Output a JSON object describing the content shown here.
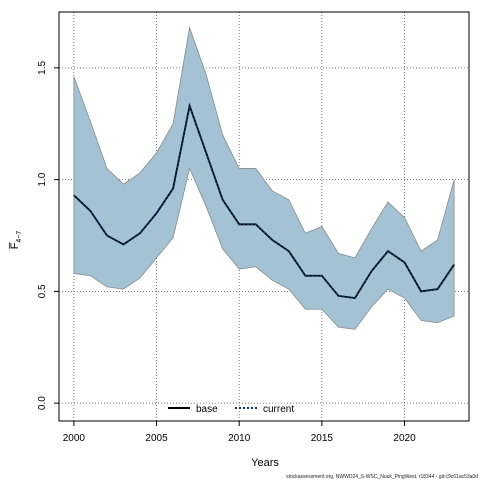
{
  "chart_data": {
    "type": "area",
    "xlabel": "Years",
    "ylabel": "F̅",
    "ylabel_subscript": "4−7",
    "xlim": [
      1999.1,
      2023.9
    ],
    "ylim": [
      -0.08,
      1.75
    ],
    "xticks": [
      2000,
      2005,
      2010,
      2015,
      2020
    ],
    "yticks": [
      0.0,
      0.5,
      1.0,
      1.5
    ],
    "xtick_labels": [
      "2000",
      "2005",
      "2010",
      "2015",
      "2020"
    ],
    "ytick_labels": [
      "0.0",
      "0.5",
      "1.0",
      "1.5"
    ],
    "grid": true,
    "legend_placement": "bottom-center",
    "legend": [
      {
        "label": "base",
        "style": "solid"
      },
      {
        "label": "current",
        "style": "dotted"
      }
    ],
    "x": [
      2000,
      2001,
      2002,
      2003,
      2004,
      2005,
      2006,
      2007,
      2008,
      2009,
      2010,
      2011,
      2012,
      2013,
      2014,
      2015,
      2016,
      2017,
      2018,
      2019,
      2020,
      2021,
      2022,
      2023
    ],
    "band": {
      "upper": [
        1.46,
        1.26,
        1.05,
        0.98,
        1.03,
        1.12,
        1.25,
        1.68,
        1.47,
        1.2,
        1.05,
        1.05,
        0.95,
        0.91,
        0.76,
        0.79,
        0.67,
        0.65,
        0.78,
        0.9,
        0.83,
        0.68,
        0.73,
        1.0
      ],
      "lower": [
        0.58,
        0.57,
        0.52,
        0.51,
        0.56,
        0.65,
        0.74,
        1.05,
        0.88,
        0.69,
        0.6,
        0.61,
        0.55,
        0.51,
        0.42,
        0.42,
        0.34,
        0.33,
        0.43,
        0.51,
        0.47,
        0.37,
        0.36,
        0.39
      ]
    },
    "series": [
      {
        "name": "base",
        "values": [
          0.93,
          0.86,
          0.75,
          0.71,
          0.76,
          0.85,
          0.96,
          1.33,
          1.12,
          0.91,
          0.8,
          0.8,
          0.73,
          0.68,
          0.57,
          0.57,
          0.48,
          0.47,
          0.59,
          0.68,
          0.63,
          0.5,
          0.51,
          0.62
        ]
      },
      {
        "name": "current",
        "values": [
          0.93,
          0.86,
          0.75,
          0.71,
          0.76,
          0.85,
          0.96,
          1.33,
          1.12,
          0.91,
          0.8,
          0.8,
          0.73,
          0.68,
          0.57,
          0.57,
          0.48,
          0.47,
          0.59,
          0.68,
          0.63,
          0.5,
          0.51,
          0.62
        ]
      }
    ],
    "colors": {
      "band_fill": "#a3c3d5",
      "band_edge": "#8a8a8a",
      "base_line": "#000000",
      "current_line": "#003a6b",
      "grid": "#555555"
    }
  },
  "footnote": "stockassessment.org, NWWD24_S-WSC_Nuuk_PingWest, r18344 - git:c9c61ac53a0d"
}
